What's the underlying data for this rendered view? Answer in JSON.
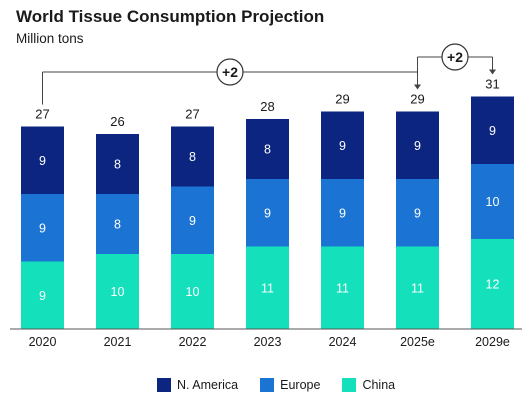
{
  "title": "World Tissue Consumption Projection",
  "subtitle": "Million tons",
  "colors": {
    "n_america": "#0b2580",
    "europe": "#1b74d4",
    "china": "#14e1bc",
    "axis": "#555555",
    "text": "#1a1a1a"
  },
  "chart_data": {
    "type": "bar",
    "stacked": true,
    "categories": [
      "2020",
      "2021",
      "2022",
      "2023",
      "2024",
      "2025e",
      "2029e"
    ],
    "series": [
      {
        "name": "China",
        "values": [
          9,
          10,
          10,
          11,
          11,
          11,
          12
        ],
        "color": "#14e1bc"
      },
      {
        "name": "Europe",
        "values": [
          9,
          8,
          9,
          9,
          9,
          9,
          10
        ],
        "color": "#1b74d4"
      },
      {
        "name": "N. America",
        "values": [
          9,
          8,
          8,
          8,
          9,
          9,
          9
        ],
        "color": "#0b2580"
      }
    ],
    "totals": [
      27,
      26,
      27,
      28,
      29,
      29,
      31
    ],
    "annotations": [
      {
        "text": "+2",
        "from": "2020",
        "to": "2025e"
      },
      {
        "text": "+2",
        "from": "2025e",
        "to": "2029e"
      }
    ],
    "legend": [
      "N. America",
      "Europe",
      "China"
    ],
    "legend_position": "bottom",
    "grid": false
  }
}
